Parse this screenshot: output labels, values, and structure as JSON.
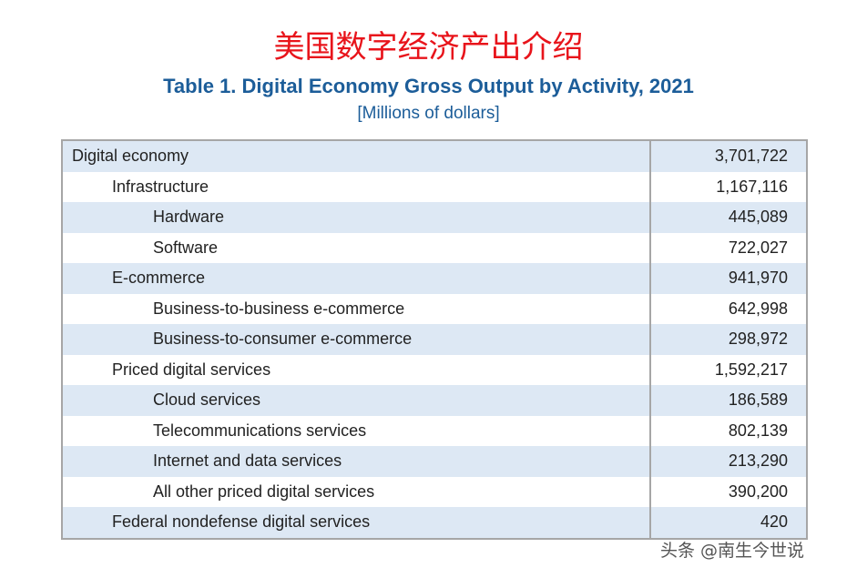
{
  "header": {
    "title": "美国数字经济产出介绍",
    "subtitle": "Table 1. Digital Economy Gross Output by Activity, 2021",
    "unit": "[Millions of dollars]"
  },
  "table": {
    "rows": [
      [
        "Digital economy",
        "3,701,722"
      ],
      [
        "Infrastructure",
        "1,167,116"
      ],
      [
        "Hardware",
        "445,089"
      ],
      [
        "Software",
        "722,027"
      ],
      [
        "E-commerce",
        "941,970"
      ],
      [
        "Business-to-business e-commerce",
        "642,998"
      ],
      [
        "Business-to-consumer e-commerce",
        "298,972"
      ],
      [
        "Priced digital services",
        "1,592,217"
      ],
      [
        "Cloud services",
        "186,589"
      ],
      [
        "Telecommunications services",
        "802,139"
      ],
      [
        "Internet and data services",
        "213,290"
      ],
      [
        "All other priced digital services",
        "390,200"
      ],
      [
        "Federal nondefense digital services",
        "420"
      ]
    ]
  },
  "watermark": "头条 @南生今世说"
}
